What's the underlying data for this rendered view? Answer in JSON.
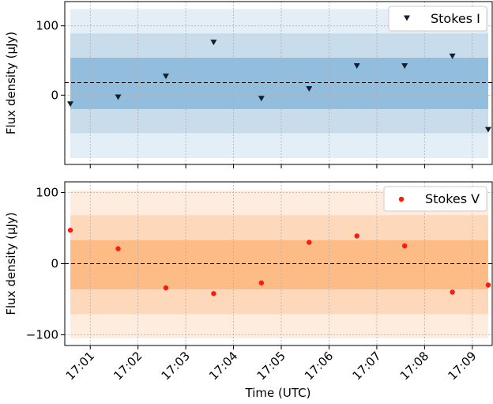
{
  "colors": {
    "stokes_i_marker": "#0d1f33",
    "stokes_i_band_1": "#93bddd",
    "stokes_i_band_2": "#c8dcec",
    "stokes_i_band_3": "#e4eef7",
    "stokes_v_marker": "#ff1a0d",
    "stokes_v_band_1": "#fdbb86",
    "stokes_v_band_2": "#fed8ba",
    "stokes_v_band_3": "#feeddf"
  },
  "chart_data": [
    {
      "type": "scatter",
      "ylabel": "Flux density (µJy)",
      "xlim": [
        "17:00:28",
        "17:09:25"
      ],
      "ylim": [
        -100,
        135
      ],
      "yticks": [
        100,
        0
      ],
      "legend": "top-right",
      "grid": true,
      "series": [
        {
          "name": "Stokes I",
          "marker": "triangle-down",
          "x": [
            "17:00:35",
            "17:01:35",
            "17:02:35",
            "17:03:35",
            "17:04:35",
            "17:05:35",
            "17:06:35",
            "17:07:35",
            "17:08:35",
            "17:09:20"
          ],
          "values": [
            -13,
            -3,
            27,
            76,
            -5,
            9,
            42,
            42,
            56,
            -50
          ]
        }
      ],
      "hline": 18,
      "bands": [
        {
          "from": -20,
          "to": 54
        },
        {
          "from": -55,
          "to": 89
        },
        {
          "from": -91,
          "to": 124
        }
      ],
      "band_x": [
        "17:00:35",
        "17:09:20"
      ]
    },
    {
      "type": "scatter",
      "ylabel": "Flux density (µJy)",
      "xlabel": "Time (UTC)",
      "xlim": [
        "17:00:28",
        "17:09:25"
      ],
      "ylim": [
        -115,
        115
      ],
      "yticks": [
        100,
        0,
        -100
      ],
      "xticks": [
        "17:01",
        "17:02",
        "17:03",
        "17:04",
        "17:05",
        "17:06",
        "17:07",
        "17:08",
        "17:09"
      ],
      "legend": "top-right",
      "grid": true,
      "series": [
        {
          "name": "Stokes V",
          "marker": "circle",
          "x": [
            "17:00:35",
            "17:01:35",
            "17:02:35",
            "17:03:35",
            "17:04:35",
            "17:05:35",
            "17:06:35",
            "17:07:35",
            "17:08:35",
            "17:09:20"
          ],
          "values": [
            47,
            21,
            -34,
            -42,
            -27,
            30,
            39,
            25,
            -40,
            -30
          ]
        }
      ],
      "hline": 0,
      "bands": [
        {
          "from": -36,
          "to": 33
        },
        {
          "from": -71,
          "to": 68
        },
        {
          "from": -105,
          "to": 103
        }
      ],
      "band_x": [
        "17:00:35",
        "17:09:20"
      ]
    }
  ]
}
